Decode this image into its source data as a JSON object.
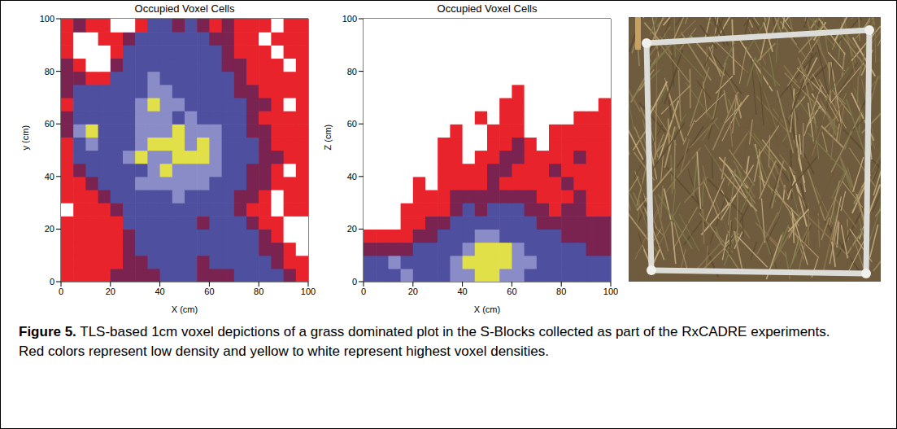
{
  "chart_data": [
    {
      "type": "heatmap",
      "title": "Occupied Voxel Cells",
      "x_label": "X (cm)",
      "y_label": "y (cm)",
      "xlim": [
        0,
        100
      ],
      "ylim": [
        0,
        100
      ],
      "xticks": [
        0,
        20,
        40,
        60,
        80,
        100
      ],
      "yticks": [
        0,
        20,
        40,
        60,
        80,
        100
      ],
      "x": [
        2.5,
        7.5,
        12.5,
        17.5,
        22.5,
        27.5,
        32.5,
        37.5,
        42.5,
        47.5,
        52.5,
        57.5,
        62.5,
        67.5,
        72.5,
        77.5,
        82.5,
        87.5,
        92.5,
        97.5
      ],
      "y": [
        2.5,
        7.5,
        12.5,
        17.5,
        22.5,
        27.5,
        32.5,
        37.5,
        42.5,
        47.5,
        52.5,
        57.5,
        62.5,
        67.5,
        72.5,
        77.5,
        82.5,
        87.5,
        92.5,
        97.5
      ],
      "cells": [
        [
          1,
          1,
          1,
          1,
          2,
          2,
          2,
          2,
          3,
          3,
          3,
          2,
          2,
          2,
          3,
          3,
          3,
          3,
          2,
          1
        ],
        [
          1,
          1,
          1,
          1,
          1,
          2,
          2,
          3,
          3,
          3,
          3,
          2,
          3,
          3,
          3,
          3,
          3,
          2,
          1,
          1
        ],
        [
          1,
          1,
          1,
          1,
          1,
          2,
          3,
          3,
          3,
          3,
          3,
          3,
          3,
          3,
          3,
          3,
          2,
          2,
          1,
          0
        ],
        [
          1,
          1,
          1,
          1,
          1,
          2,
          3,
          3,
          3,
          3,
          3,
          3,
          3,
          3,
          3,
          3,
          2,
          1,
          0,
          0
        ],
        [
          1,
          1,
          1,
          1,
          1,
          3,
          3,
          3,
          3,
          3,
          3,
          2,
          3,
          3,
          3,
          2,
          1,
          1,
          0,
          0
        ],
        [
          0,
          1,
          1,
          1,
          2,
          3,
          3,
          3,
          3,
          3,
          3,
          3,
          3,
          3,
          2,
          1,
          1,
          0,
          1,
          1
        ],
        [
          1,
          1,
          1,
          2,
          3,
          3,
          3,
          3,
          3,
          4,
          3,
          3,
          3,
          3,
          2,
          2,
          1,
          0,
          1,
          1
        ],
        [
          1,
          1,
          2,
          3,
          3,
          3,
          4,
          4,
          4,
          4,
          4,
          4,
          3,
          3,
          3,
          2,
          2,
          1,
          1,
          1
        ],
        [
          1,
          2,
          3,
          3,
          3,
          3,
          3,
          4,
          5,
          4,
          4,
          4,
          4,
          3,
          3,
          2,
          2,
          1,
          0,
          1
        ],
        [
          1,
          3,
          3,
          3,
          3,
          4,
          5,
          4,
          4,
          5,
          5,
          5,
          4,
          3,
          3,
          3,
          2,
          2,
          1,
          1
        ],
        [
          1,
          3,
          4,
          3,
          3,
          3,
          4,
          5,
          5,
          5,
          4,
          5,
          4,
          3,
          3,
          3,
          2,
          1,
          1,
          1
        ],
        [
          2,
          4,
          5,
          3,
          3,
          3,
          4,
          4,
          4,
          5,
          4,
          4,
          4,
          3,
          3,
          2,
          2,
          1,
          1,
          1
        ],
        [
          2,
          3,
          3,
          3,
          3,
          3,
          4,
          4,
          4,
          3,
          4,
          3,
          3,
          3,
          3,
          2,
          1,
          1,
          1,
          1
        ],
        [
          1,
          3,
          3,
          3,
          3,
          3,
          4,
          5,
          4,
          4,
          3,
          3,
          3,
          3,
          3,
          2,
          2,
          1,
          0,
          1
        ],
        [
          2,
          3,
          3,
          3,
          3,
          3,
          3,
          4,
          4,
          3,
          3,
          3,
          3,
          3,
          2,
          2,
          1,
          1,
          1,
          1
        ],
        [
          2,
          2,
          1,
          1,
          3,
          3,
          3,
          4,
          3,
          3,
          3,
          3,
          3,
          3,
          2,
          1,
          1,
          1,
          1,
          1
        ],
        [
          2,
          1,
          0,
          0,
          2,
          3,
          3,
          3,
          3,
          3,
          3,
          3,
          3,
          2,
          2,
          1,
          1,
          1,
          0,
          1
        ],
        [
          1,
          0,
          0,
          0,
          1,
          3,
          3,
          3,
          3,
          3,
          3,
          3,
          3,
          2,
          1,
          1,
          1,
          0,
          1,
          1
        ],
        [
          1,
          0,
          0,
          1,
          1,
          2,
          3,
          3,
          3,
          3,
          3,
          3,
          2,
          2,
          1,
          1,
          0,
          1,
          1,
          1
        ],
        [
          1,
          2,
          1,
          1,
          0,
          0,
          1,
          3,
          3,
          2,
          3,
          2,
          1,
          2,
          1,
          1,
          1,
          0,
          1,
          1
        ]
      ]
    },
    {
      "type": "heatmap",
      "title": "Occupied Voxel Cells",
      "x_label": "X (cm)",
      "y_label": "Z (cm)",
      "xlim": [
        0,
        100
      ],
      "ylim": [
        0,
        100
      ],
      "xticks": [
        0,
        20,
        40,
        60,
        80,
        100
      ],
      "yticks": [
        0,
        20,
        40,
        60,
        80,
        100
      ],
      "x": [
        2.5,
        7.5,
        12.5,
        17.5,
        22.5,
        27.5,
        32.5,
        37.5,
        42.5,
        47.5,
        52.5,
        57.5,
        62.5,
        67.5,
        72.5,
        77.5,
        82.5,
        87.5,
        92.5,
        97.5
      ],
      "y": [
        2.5,
        7.5,
        12.5,
        17.5,
        22.5,
        27.5,
        32.5,
        37.5,
        42.5,
        47.5,
        52.5,
        57.5,
        62.5,
        67.5,
        72.5,
        77.5,
        82.5,
        87.5,
        92.5,
        97.5
      ],
      "cells": [
        [
          3,
          3,
          3,
          4,
          3,
          3,
          3,
          4,
          4,
          5,
          5,
          4,
          4,
          3,
          3,
          3,
          3,
          3,
          3,
          3
        ],
        [
          3,
          3,
          4,
          3,
          3,
          3,
          3,
          4,
          5,
          5,
          5,
          5,
          4,
          4,
          3,
          3,
          3,
          3,
          3,
          3
        ],
        [
          2,
          2,
          2,
          2,
          3,
          3,
          3,
          3,
          4,
          5,
          5,
          5,
          4,
          3,
          3,
          3,
          3,
          3,
          2,
          2
        ],
        [
          1,
          1,
          1,
          1,
          2,
          2,
          3,
          3,
          3,
          4,
          4,
          3,
          3,
          3,
          3,
          3,
          2,
          2,
          2,
          2
        ],
        [
          0,
          0,
          0,
          1,
          1,
          2,
          2,
          3,
          3,
          3,
          3,
          3,
          3,
          3,
          2,
          2,
          2,
          2,
          2,
          2
        ],
        [
          0,
          0,
          0,
          1,
          1,
          1,
          1,
          2,
          3,
          2,
          3,
          3,
          3,
          2,
          2,
          1,
          2,
          2,
          1,
          1
        ],
        [
          0,
          0,
          0,
          0,
          1,
          1,
          1,
          2,
          2,
          2,
          2,
          2,
          2,
          2,
          1,
          1,
          1,
          2,
          1,
          1
        ],
        [
          0,
          0,
          0,
          0,
          1,
          0,
          1,
          1,
          1,
          1,
          2,
          1,
          1,
          1,
          1,
          1,
          2,
          1,
          1,
          1
        ],
        [
          0,
          0,
          0,
          0,
          0,
          0,
          1,
          1,
          1,
          1,
          2,
          2,
          1,
          1,
          1,
          2,
          1,
          1,
          1,
          1
        ],
        [
          0,
          0,
          0,
          0,
          0,
          0,
          1,
          1,
          0,
          1,
          1,
          2,
          2,
          1,
          1,
          1,
          1,
          2,
          1,
          1
        ],
        [
          0,
          0,
          0,
          0,
          0,
          0,
          1,
          1,
          0,
          0,
          1,
          1,
          2,
          1,
          0,
          1,
          1,
          1,
          1,
          1
        ],
        [
          0,
          0,
          0,
          0,
          0,
          0,
          0,
          1,
          0,
          0,
          1,
          1,
          1,
          0,
          0,
          1,
          1,
          1,
          1,
          1
        ],
        [
          0,
          0,
          0,
          0,
          0,
          0,
          0,
          0,
          0,
          1,
          0,
          1,
          1,
          0,
          0,
          0,
          0,
          1,
          1,
          1
        ],
        [
          0,
          0,
          0,
          0,
          0,
          0,
          0,
          0,
          0,
          0,
          0,
          1,
          1,
          0,
          0,
          0,
          0,
          0,
          0,
          1
        ],
        [
          0,
          0,
          0,
          0,
          0,
          0,
          0,
          0,
          0,
          0,
          0,
          0,
          1,
          0,
          0,
          0,
          0,
          0,
          0,
          0
        ],
        [
          0,
          0,
          0,
          0,
          0,
          0,
          0,
          0,
          0,
          0,
          0,
          0,
          0,
          0,
          0,
          0,
          0,
          0,
          0,
          0
        ],
        [
          0,
          0,
          0,
          0,
          0,
          0,
          0,
          0,
          0,
          0,
          0,
          0,
          0,
          0,
          0,
          0,
          0,
          0,
          0,
          0
        ],
        [
          0,
          0,
          0,
          0,
          0,
          0,
          0,
          0,
          0,
          0,
          0,
          0,
          0,
          0,
          0,
          0,
          0,
          0,
          0,
          0
        ],
        [
          0,
          0,
          0,
          0,
          0,
          0,
          0,
          0,
          0,
          0,
          0,
          0,
          0,
          0,
          0,
          0,
          0,
          0,
          0,
          0
        ],
        [
          0,
          0,
          0,
          0,
          0,
          0,
          0,
          0,
          0,
          0,
          0,
          0,
          0,
          0,
          0,
          0,
          0,
          0,
          0,
          0
        ]
      ]
    }
  ],
  "caption": {
    "label": "Figure 5.",
    "text": "TLS-based 1cm voxel depictions of a grass dominated plot in the S-Blocks collected as part of the RxCADRE experiments. Red colors represent low density and yellow to white represent highest voxel densities."
  }
}
